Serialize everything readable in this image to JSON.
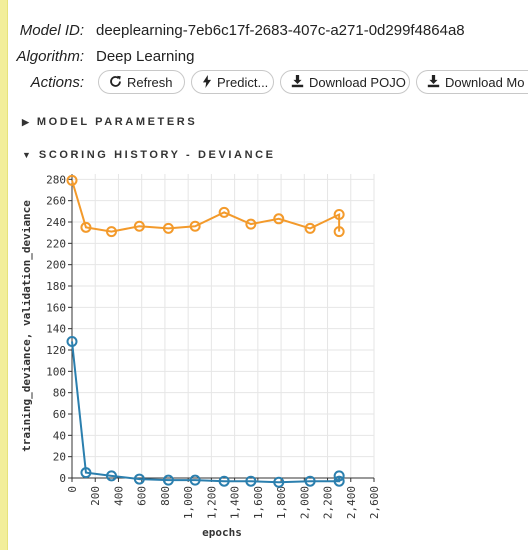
{
  "model": {
    "id_key": "Model ID:",
    "id_value": "deeplearning-7eb6c17f-2683-407c-a271-0d299f4864a8",
    "algo_key": "Algorithm:",
    "algo_value": "Deep Learning",
    "actions_key": "Actions:"
  },
  "actions": {
    "refresh": {
      "label": "Refresh",
      "icon": "refresh-icon"
    },
    "predict": {
      "label": "Predict...",
      "icon": "bolt-icon"
    },
    "download_pojo": {
      "label": "Download POJO",
      "icon": "download-icon"
    },
    "download_mojo": {
      "label": "Download Mo",
      "icon": "download-icon"
    }
  },
  "sections": {
    "params": "MODEL PARAMETERS",
    "scoring": "SCORING HISTORY - DEVIANCE"
  },
  "colors": {
    "training": "#2b7fae",
    "validation": "#f39a2b",
    "grid": "#e6e6e6"
  },
  "chart_data": {
    "type": "line",
    "xlabel": "epochs",
    "ylabel": "training_deviance, validation_deviance",
    "xlim": [
      0,
      2600
    ],
    "ylim": [
      0,
      285
    ],
    "x_ticks": [
      0,
      200,
      400,
      600,
      800,
      1000,
      1200,
      1400,
      1600,
      1800,
      2000,
      2200,
      2400,
      2600
    ],
    "x_tick_labels": [
      "0",
      "200",
      "400",
      "600",
      "800",
      "1,000",
      "1,200",
      "1,400",
      "1,600",
      "1,800",
      "2,000",
      "2,200",
      "2,400",
      "2,600"
    ],
    "y_ticks": [
      0,
      20,
      40,
      60,
      80,
      100,
      120,
      140,
      160,
      180,
      200,
      220,
      240,
      260,
      280
    ],
    "series": [
      {
        "key": "validation",
        "x": [
          0,
          120,
          340,
          580,
          830,
          1060,
          1310,
          1540,
          1780,
          2050,
          2300,
          2300
        ],
        "values": [
          279,
          235,
          231,
          236,
          234,
          236,
          249,
          238,
          243,
          234,
          247,
          231
        ]
      },
      {
        "key": "training",
        "x": [
          0,
          120,
          340,
          580,
          830,
          1060,
          1310,
          1540,
          1780,
          2050,
          2300,
          2300
        ],
        "values": [
          128,
          5,
          2,
          -1,
          -2,
          -2,
          -3,
          -3,
          -4,
          -3,
          -3,
          2
        ]
      }
    ]
  }
}
